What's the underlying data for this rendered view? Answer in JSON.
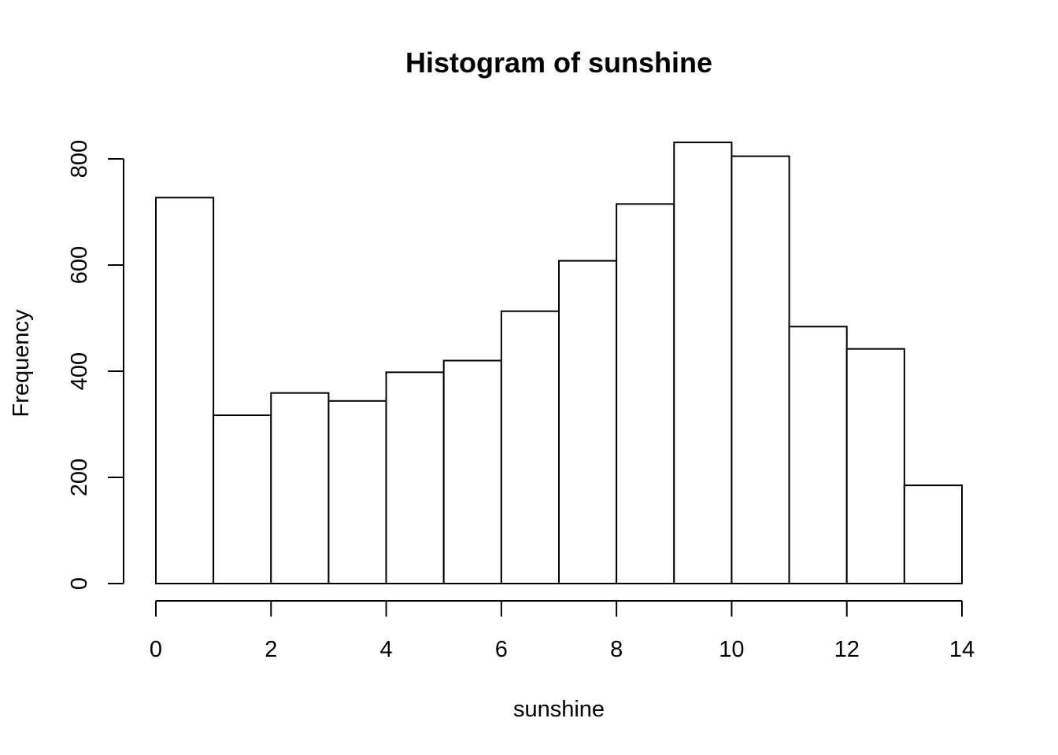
{
  "chart_data": {
    "type": "bar",
    "title": "Histogram of sunshine",
    "xlabel": "sunshine",
    "ylabel": "Frequency",
    "bins": [
      {
        "start": 0,
        "end": 1,
        "count": 727
      },
      {
        "start": 1,
        "end": 2,
        "count": 317
      },
      {
        "start": 2,
        "end": 3,
        "count": 359
      },
      {
        "start": 3,
        "end": 4,
        "count": 344
      },
      {
        "start": 4,
        "end": 5,
        "count": 398
      },
      {
        "start": 5,
        "end": 6,
        "count": 420
      },
      {
        "start": 6,
        "end": 7,
        "count": 513
      },
      {
        "start": 7,
        "end": 8,
        "count": 608
      },
      {
        "start": 8,
        "end": 9,
        "count": 715
      },
      {
        "start": 9,
        "end": 10,
        "count": 831
      },
      {
        "start": 10,
        "end": 11,
        "count": 805
      },
      {
        "start": 11,
        "end": 12,
        "count": 484
      },
      {
        "start": 12,
        "end": 13,
        "count": 442
      },
      {
        "start": 13,
        "end": 14,
        "count": 185
      }
    ],
    "xlim": [
      0,
      14
    ],
    "ylim": [
      0,
      800
    ],
    "xticks": [
      "0",
      "2",
      "4",
      "6",
      "8",
      "10",
      "12",
      "14"
    ],
    "yticks": [
      "0",
      "200",
      "400",
      "600",
      "800"
    ],
    "grid": false,
    "legend": "none"
  }
}
